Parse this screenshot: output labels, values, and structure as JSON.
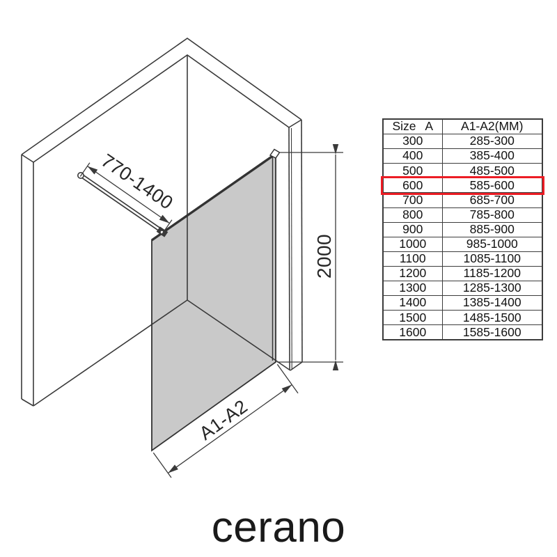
{
  "diagram": {
    "description": "walk-in shower glass panel isometric drawing",
    "dimensions": {
      "bar_range": "770-1400",
      "height": "2000",
      "width_label": "A1-A2"
    },
    "colors": {
      "glass": "#c9c9c9",
      "line": "#3a3a3a"
    }
  },
  "table": {
    "headers": [
      "Size A",
      "A1-A2(MM)"
    ],
    "rows": [
      [
        "300",
        "285-300"
      ],
      [
        "400",
        "385-400"
      ],
      [
        "500",
        "485-500"
      ],
      [
        "600",
        "585-600"
      ],
      [
        "700",
        "685-700"
      ],
      [
        "800",
        "785-800"
      ],
      [
        "900",
        "885-900"
      ],
      [
        "1000",
        "985-1000"
      ],
      [
        "1100",
        "1085-1100"
      ],
      [
        "1200",
        "1185-1200"
      ],
      [
        "1300",
        "1285-1300"
      ],
      [
        "1400",
        "1385-1400"
      ],
      [
        "1500",
        "1485-1500"
      ],
      [
        "1600",
        "1585-1600"
      ]
    ],
    "highlighted_size": "600",
    "highlight_color": "#ec1c24"
  },
  "logo": {
    "text": "cerano"
  }
}
